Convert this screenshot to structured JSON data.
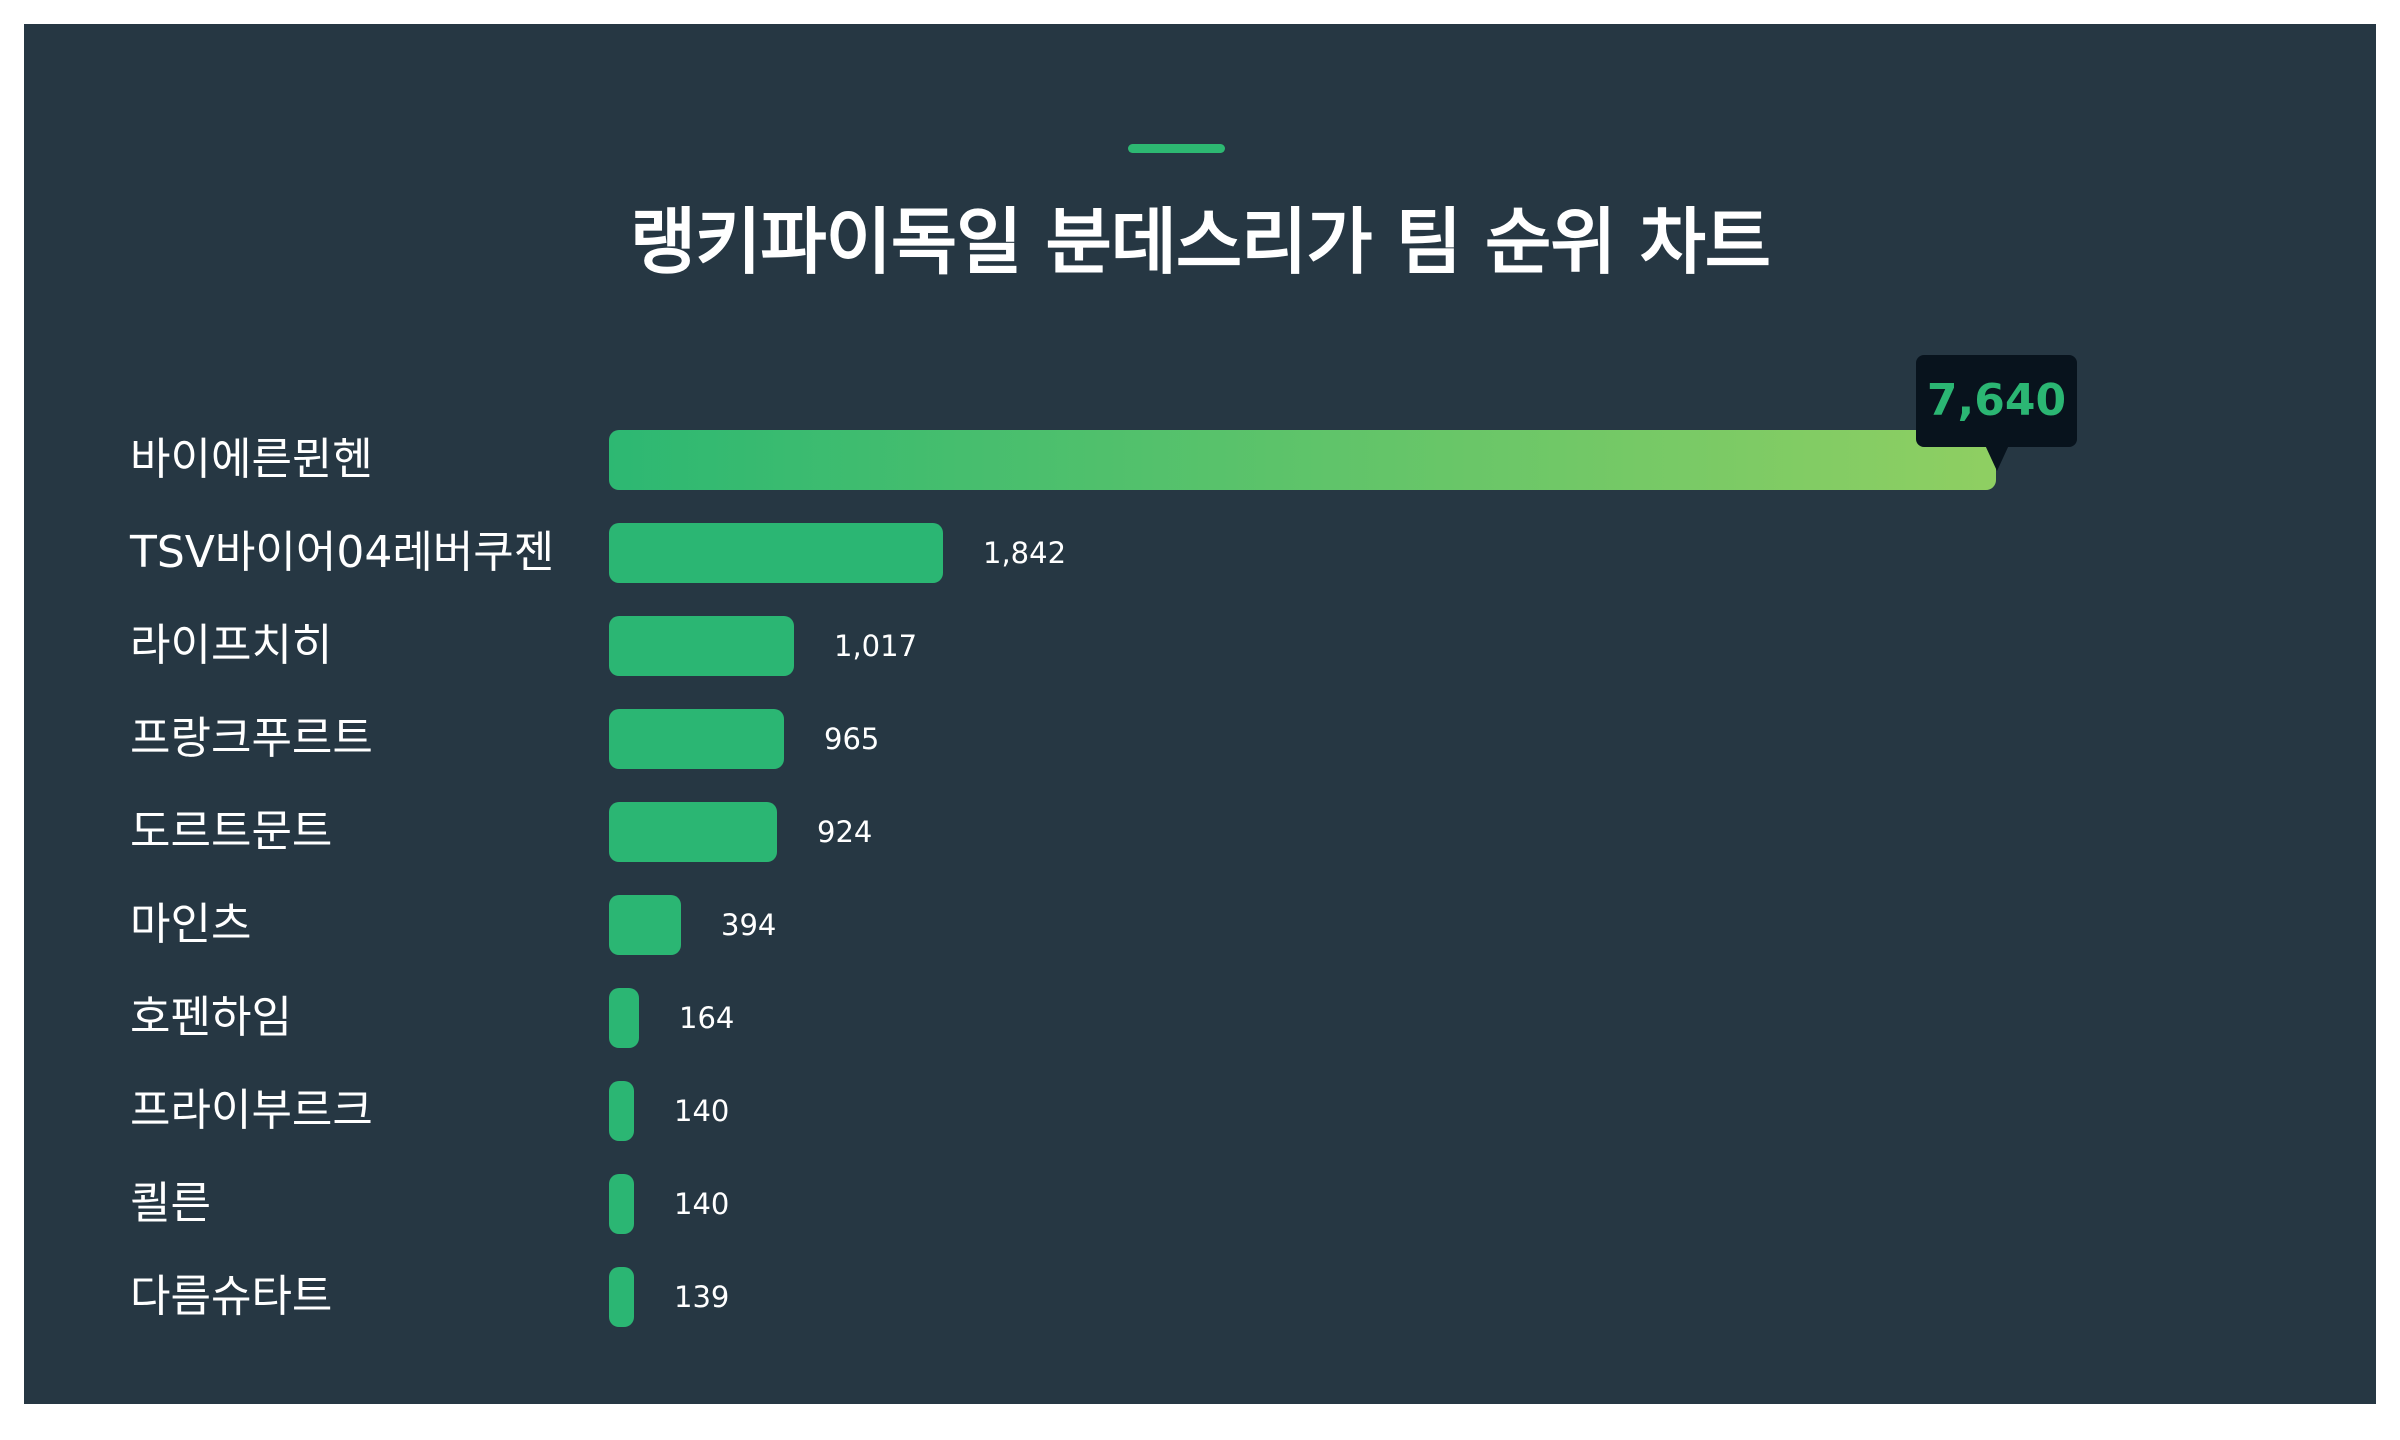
{
  "header": {
    "title": "랭키파이독일 분데스리가 팀 순위 차트",
    "accent_color": "#2db872"
  },
  "colors": {
    "background": "#263743",
    "bar": "#2bb673",
    "bar_top_gradient_start": "#2db872",
    "bar_top_gradient_end": "#8fcf62",
    "tooltip_bg": "#08131d",
    "tooltip_text": "#2bb673",
    "text": "#ffffff"
  },
  "tooltip": {
    "value": "7,640"
  },
  "rows": [
    {
      "label": "바이에른뮌헨",
      "value": 7640,
      "value_label": "7,640"
    },
    {
      "label": "TSV바이어04레버쿠젠",
      "value": 1842,
      "value_label": "1,842"
    },
    {
      "label": "라이프치히",
      "value": 1017,
      "value_label": "1,017"
    },
    {
      "label": "프랑크푸르트",
      "value": 965,
      "value_label": "965"
    },
    {
      "label": "도르트문트",
      "value": 924,
      "value_label": "924"
    },
    {
      "label": "마인츠",
      "value": 394,
      "value_label": "394"
    },
    {
      "label": "호펜하임",
      "value": 164,
      "value_label": "164"
    },
    {
      "label": "프라이부르크",
      "value": 140,
      "value_label": "140"
    },
    {
      "label": "쾰른",
      "value": 140,
      "value_label": "140"
    },
    {
      "label": "다름슈타트",
      "value": 139,
      "value_label": "139"
    }
  ],
  "chart_data": {
    "type": "bar",
    "orientation": "horizontal",
    "title": "랭키파이독일 분데스리가 팀 순위 차트",
    "categories": [
      "바이에른뮌헨",
      "TSV바이어04레버쿠젠",
      "라이프치히",
      "프랑크푸르트",
      "도르트문트",
      "마인츠",
      "호펜하임",
      "프라이부르크",
      "쾰른",
      "다름슈타트"
    ],
    "values": [
      7640,
      1842,
      1017,
      965,
      924,
      394,
      164,
      140,
      140,
      139
    ],
    "xlabel": "",
    "ylabel": "",
    "grid": false,
    "legend": null,
    "annotations": [
      {
        "category": "바이에른뮌헨",
        "text": "7,640",
        "style": "tooltip"
      }
    ]
  }
}
